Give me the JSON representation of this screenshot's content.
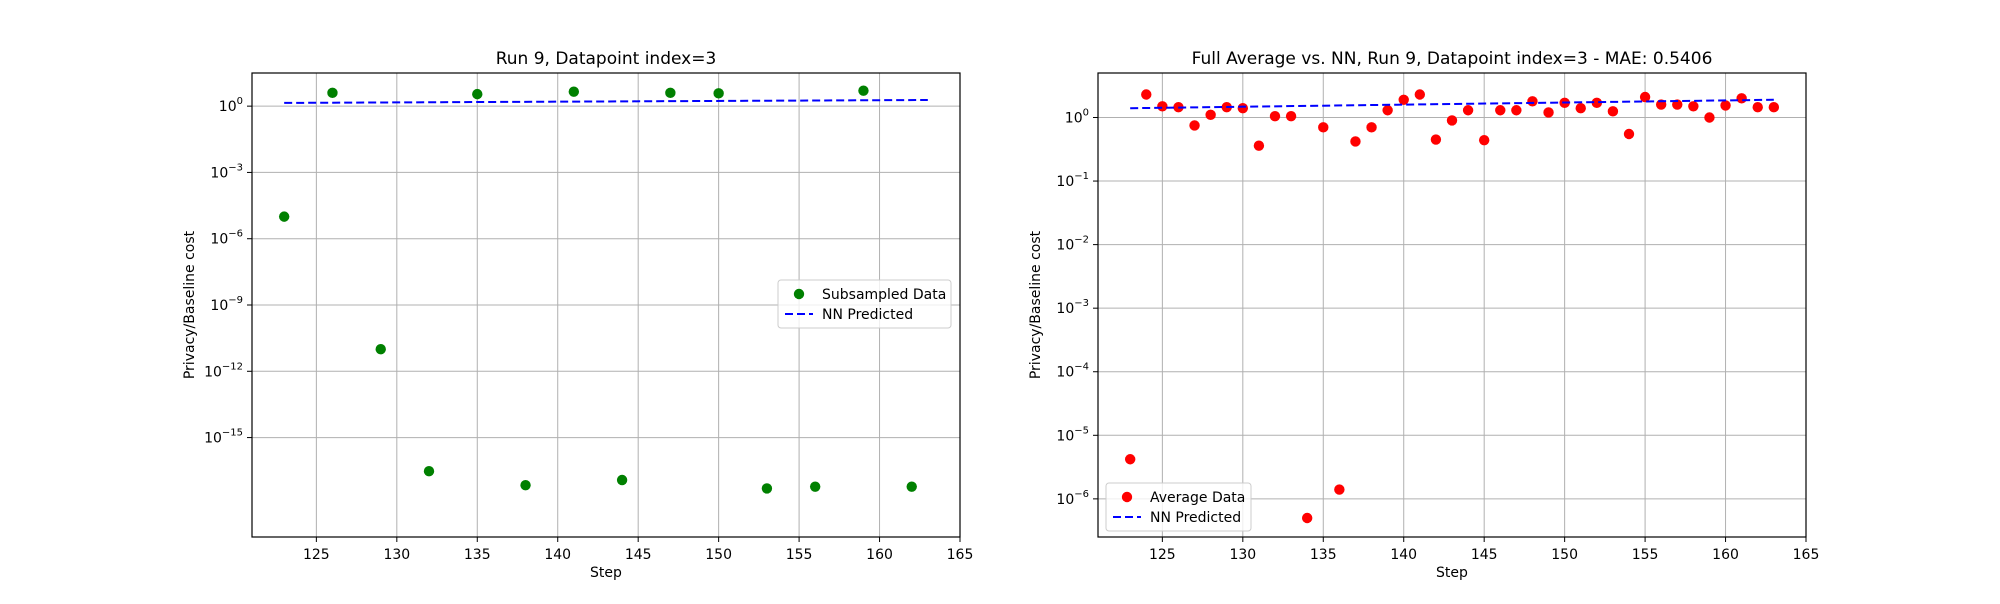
{
  "chart_data": [
    {
      "type": "scatter",
      "title": "Run 9, Datapoint index=3",
      "xlabel": "Step",
      "ylabel": "Privacy/Baseline cost",
      "xlim": [
        121,
        165
      ],
      "ylim_log10": [
        -19.5,
        1.5
      ],
      "yscale": "log",
      "grid": true,
      "legend_position": "center-right",
      "x_ticks": [
        125,
        130,
        135,
        140,
        145,
        150,
        155,
        160,
        165
      ],
      "x_tick_labels": [
        "125",
        "130",
        "135",
        "140",
        "145",
        "150",
        "155",
        "160",
        "165"
      ],
      "y_ticks_log10": [
        0,
        -3,
        -6,
        -9,
        -12,
        -15
      ],
      "y_tick_bases": [
        "10",
        "10",
        "10",
        "10",
        "10",
        "10"
      ],
      "y_tick_exps": [
        "0",
        "−3",
        "−6",
        "−9",
        "−12",
        "−15"
      ],
      "series": [
        {
          "name": "Subsampled Data",
          "kind": "scatter",
          "color": "#008000",
          "x": [
            123,
            126,
            129,
            132,
            135,
            138,
            141,
            144,
            147,
            150,
            153,
            156,
            159,
            162
          ],
          "y": [
            1e-05,
            4.0,
            1e-11,
            3e-17,
            3.5,
            7e-18,
            4.5,
            1.2e-17,
            4.0,
            3.8,
            5e-18,
            6e-18,
            5.0,
            6e-18
          ]
        },
        {
          "name": "NN Predicted",
          "kind": "line",
          "color": "#0000ff",
          "dashed": true,
          "x": [
            123,
            163
          ],
          "y": [
            1.4,
            1.9
          ]
        }
      ]
    },
    {
      "type": "scatter",
      "title": "Full Average vs. NN, Run 9, Datapoint index=3 - MAE: 0.5406",
      "xlabel": "Step",
      "ylabel": "Privacy/Baseline cost",
      "xlim": [
        121,
        165
      ],
      "ylim_log10": [
        -6.6,
        0.7
      ],
      "yscale": "log",
      "grid": true,
      "legend_position": "lower-left",
      "x_ticks": [
        125,
        130,
        135,
        140,
        145,
        150,
        155,
        160,
        165
      ],
      "x_tick_labels": [
        "125",
        "130",
        "135",
        "140",
        "145",
        "150",
        "155",
        "160",
        "165"
      ],
      "y_ticks_log10": [
        0,
        -1,
        -2,
        -3,
        -4,
        -5,
        -6
      ],
      "y_tick_bases": [
        "10",
        "10",
        "10",
        "10",
        "10",
        "10",
        "10"
      ],
      "y_tick_exps": [
        "0",
        "−1",
        "−2",
        "−3",
        "−4",
        "−5",
        "−6"
      ],
      "series": [
        {
          "name": "Average Data",
          "kind": "scatter",
          "color": "#ff0000",
          "x": [
            123,
            124,
            125,
            126,
            127,
            128,
            129,
            130,
            131,
            132,
            133,
            134,
            135,
            136,
            137,
            138,
            139,
            140,
            141,
            142,
            143,
            144,
            145,
            146,
            147,
            148,
            149,
            150,
            151,
            152,
            153,
            154,
            155,
            156,
            157,
            158,
            159,
            160,
            161,
            162,
            163
          ],
          "y": [
            4.2e-06,
            2.3,
            1.5,
            1.45,
            0.75,
            1.1,
            1.45,
            1.4,
            0.36,
            1.05,
            1.05,
            5e-07,
            0.7,
            1.4e-06,
            0.42,
            0.7,
            1.3,
            1.9,
            2.3,
            0.45,
            0.9,
            1.3,
            0.44,
            1.3,
            1.3,
            1.8,
            1.2,
            1.7,
            1.4,
            1.7,
            1.25,
            0.55,
            2.1,
            1.6,
            1.6,
            1.5,
            1.0,
            1.55,
            2.0,
            1.45,
            1.45
          ]
        },
        {
          "name": "NN Predicted",
          "kind": "line",
          "color": "#0000ff",
          "dashed": true,
          "x": [
            123,
            163
          ],
          "y": [
            1.4,
            1.9
          ]
        }
      ]
    }
  ]
}
